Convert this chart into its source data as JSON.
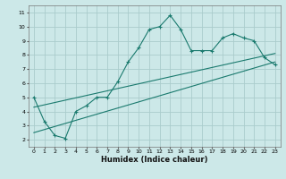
{
  "xlabel": "Humidex (Indice chaleur)",
  "background_color": "#cce8e8",
  "grid_color": "#aacccc",
  "line_color": "#1a7a6e",
  "xlim": [
    -0.5,
    23.5
  ],
  "ylim": [
    1.5,
    11.5
  ],
  "xticks": [
    0,
    1,
    2,
    3,
    4,
    5,
    6,
    7,
    8,
    9,
    10,
    11,
    12,
    13,
    14,
    15,
    16,
    17,
    18,
    19,
    20,
    21,
    22,
    23
  ],
  "yticks": [
    2,
    3,
    4,
    5,
    6,
    7,
    8,
    9,
    10,
    11
  ],
  "zigzag_x": [
    0,
    1,
    2,
    3,
    4,
    5,
    6,
    7,
    8,
    9,
    10,
    11,
    12,
    13,
    14,
    15,
    16,
    17,
    18,
    19,
    20,
    21,
    22,
    23
  ],
  "zigzag_y": [
    5.0,
    3.3,
    2.3,
    2.1,
    4.0,
    4.4,
    5.0,
    5.0,
    6.1,
    7.5,
    8.5,
    9.8,
    10.0,
    10.8,
    9.8,
    8.3,
    8.3,
    8.3,
    9.2,
    9.5,
    9.2,
    9.0,
    7.8,
    7.3
  ],
  "line1_x": [
    0,
    23
  ],
  "line1_y": [
    2.5,
    7.5
  ],
  "line2_x": [
    0,
    23
  ],
  "line2_y": [
    4.3,
    8.1
  ]
}
